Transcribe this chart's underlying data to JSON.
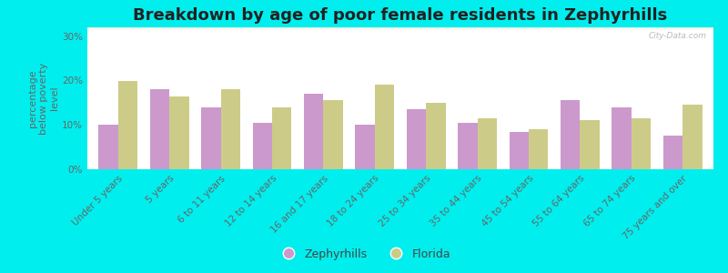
{
  "title": "Breakdown by age of poor female residents in Zephyrhills",
  "categories": [
    "Under 5 years",
    "5 years",
    "6 to 11 years",
    "12 to 14 years",
    "16 and 17 years",
    "18 to 24 years",
    "25 to 34 years",
    "35 to 44 years",
    "45 to 54 years",
    "55 to 64 years",
    "65 to 74 years",
    "75 years and over"
  ],
  "zephyrhills": [
    10,
    18,
    14,
    10.5,
    17,
    10,
    13.5,
    10.5,
    8.5,
    15.5,
    14,
    7.5
  ],
  "florida": [
    20,
    16.5,
    18,
    14,
    15.5,
    19,
    15,
    11.5,
    9,
    11,
    11.5,
    14.5
  ],
  "zephyrhills_color": "#cc99cc",
  "florida_color": "#cccc88",
  "background_color": "#00eeee",
  "ylabel": "percentage\nbelow poverty\nlevel",
  "ylim": [
    0,
    32
  ],
  "yticks": [
    0,
    10,
    20,
    30
  ],
  "ytick_labels": [
    "0%",
    "10%",
    "20%",
    "30%"
  ],
  "bar_width": 0.38,
  "title_fontsize": 13,
  "axis_label_fontsize": 8,
  "tick_fontsize": 7.5,
  "legend_fontsize": 9,
  "watermark": "City-Data.com"
}
